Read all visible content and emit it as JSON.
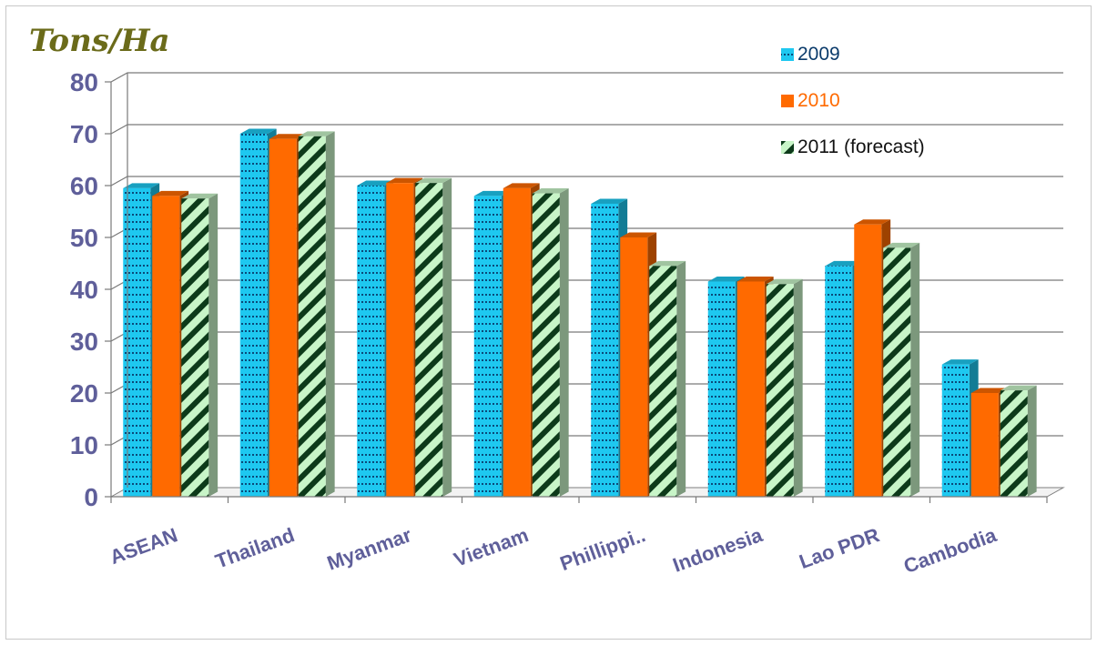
{
  "chart_data": {
    "type": "bar",
    "ylabel": "Tons/Ha",
    "ylim": [
      0,
      80
    ],
    "yticks": [
      "0",
      "10",
      "20",
      "30",
      "40",
      "50",
      "60",
      "70",
      "80"
    ],
    "categories": [
      "ASEAN",
      "Thailand",
      "Myanmar",
      "Vietnam",
      "Phillippi..",
      "Indonesia",
      "Lao PDR",
      "Cambodia"
    ],
    "series": [
      {
        "name": "2009",
        "values": [
          59.5,
          70,
          60,
          58,
          56.5,
          41.5,
          44.5,
          25.5
        ],
        "color": "#1ec8f0",
        "legend_color": "#0b3b6b"
      },
      {
        "name": "2010",
        "values": [
          58,
          69,
          60.5,
          59.5,
          50,
          41.5,
          52.5,
          20
        ],
        "color": "#ff6a00",
        "legend_color": "#ff6a00"
      },
      {
        "name": "2011 (forecast)",
        "values": [
          57.5,
          69.5,
          60.5,
          58.5,
          44.5,
          41,
          48,
          20.5
        ],
        "color": "#c8f5c8",
        "legend_color": "#111111"
      }
    ],
    "grid": true,
    "legend": "top-right"
  }
}
